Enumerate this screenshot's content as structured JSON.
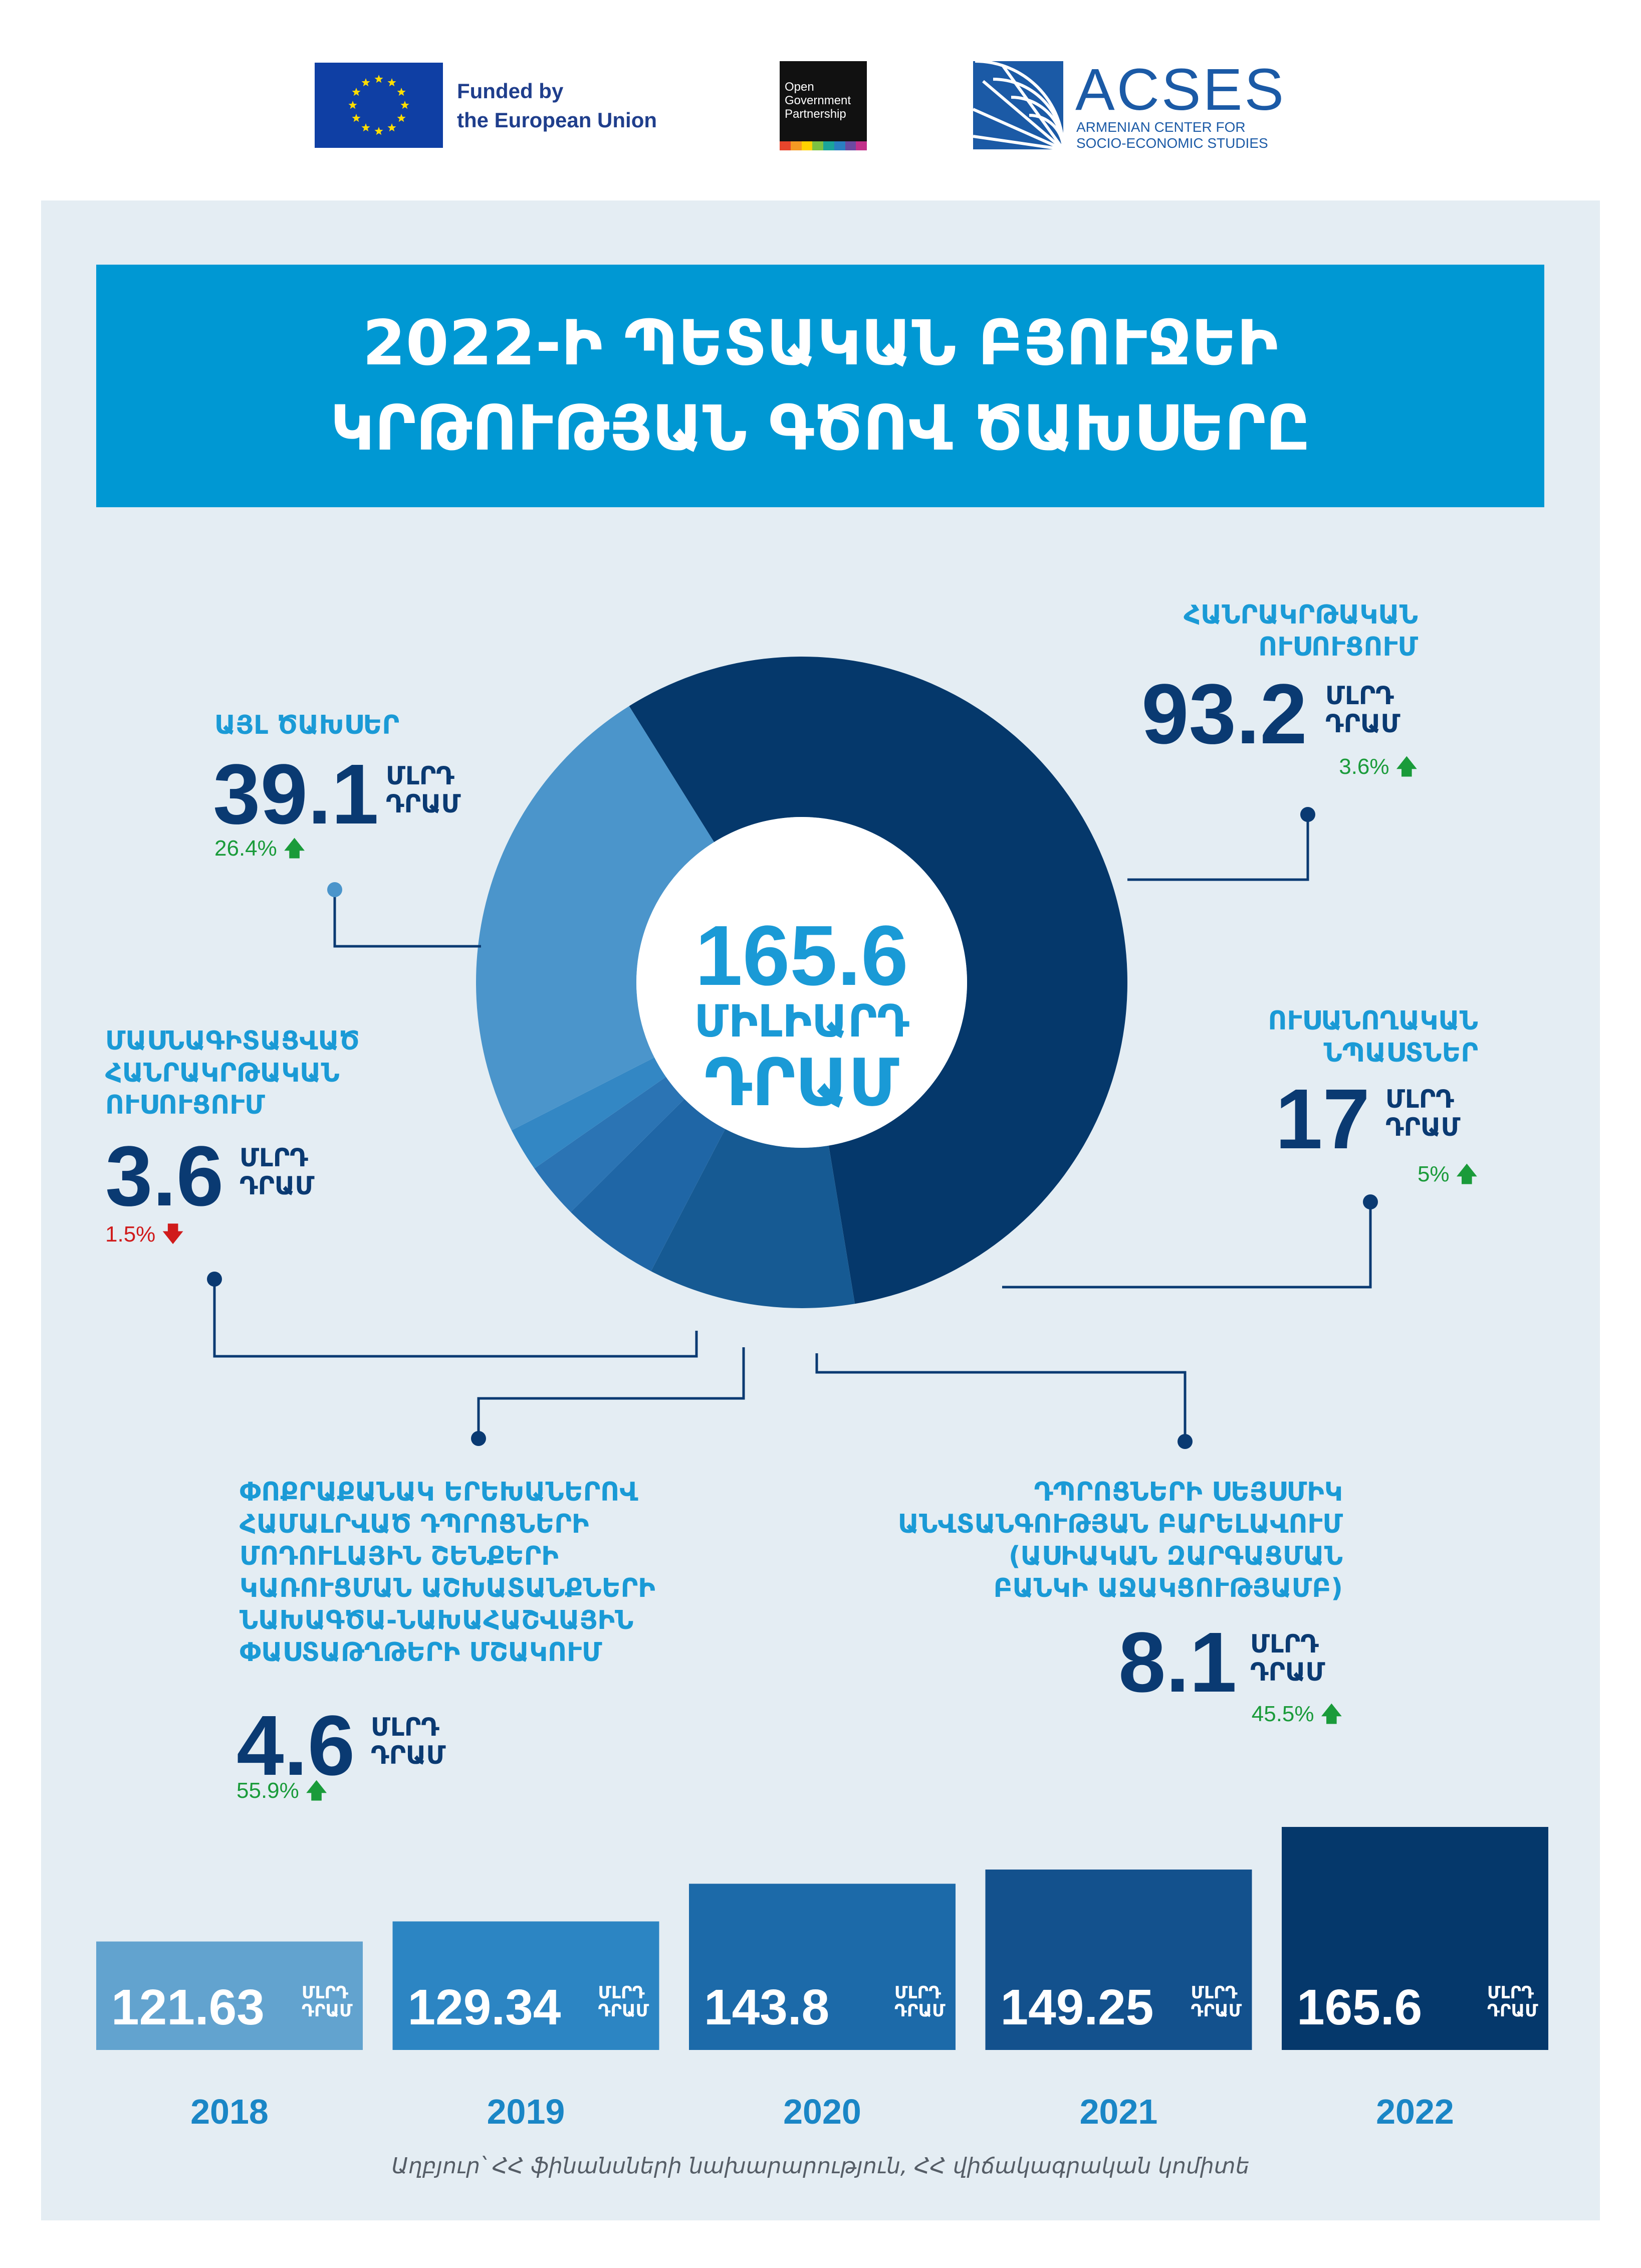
{
  "header": {
    "eu_text": "Funded by\nthe European Union",
    "ogp_text": "Open\nGovernment\nPartnership",
    "acses_name": "ACSES",
    "acses_sub": "ARMENIAN CENTER FOR\nSOCIO-ECONOMIC STUDIES"
  },
  "title": "2022-Ի ՊԵՏԱԿԱՆ ԲՅՈՒՋԵԻ\nԿՐԹՈՒԹՅԱՆ ԳԾՈՎ ԾԱԽՍԵՐԸ",
  "colors": {
    "title_bg": "#0098d3",
    "accent": "#1a9ad6",
    "navy": "#0a3a72",
    "panel": "#e4edf3",
    "up": "#1a9b3a",
    "down": "#d01b1b"
  },
  "unit_label": "ՄԼՐԴ\nԴՐԱՄ",
  "chart_data": [
    {
      "type": "pie",
      "donut": true,
      "center_value": "165.6",
      "center_unit_1": "ՄԻԼԻԱՐԴ",
      "center_unit_2": "ԴՐԱՄ",
      "slices": [
        {
          "label": "ՀԱՆՐԱԿՐԹԱԿԱՆ\nՈՒՍՈՒՑՈՒՄ",
          "value": 93.2,
          "value_text": "93.2",
          "change": "3.6%",
          "direction": "up",
          "color": "#05386b"
        },
        {
          "label": "ՈՒՍԱՆՈՂԱԿԱՆ\nՆՊԱՍՏՆԵՐ",
          "value": 17,
          "value_text": "17",
          "change": "5%",
          "direction": "up",
          "color": "#165a93"
        },
        {
          "label": "ԴՊՐՈՑՆԵՐԻ ՍԵՅՍՄԻԿ\nԱՆՎՏԱՆԳՈՒԹՅԱՆ ԲԱՐԵԼԱՎՈՒՄ\n(ԱՍԻԱԿԱՆ ԶԱՐԳԱՑՄԱՆ\nԲԱՆԿԻ ԱՋԱԿՑՈՒԹՅԱՄԲ)",
          "value": 8.1,
          "value_text": "8.1",
          "change": "45.5%",
          "direction": "up",
          "color": "#1f66a6"
        },
        {
          "label": "ՓՈՔՐԱՔԱՆԱԿ ԵՐԵԽԱՆԵՐՈՎ\nՀԱՄԱԼՐՎԱԾ ԴՊՐՈՑՆԵՐԻ\nՄՈԴՈՒԼԱՅԻՆ ՇԵՆՔԵՐԻ\nԿԱՌՈՒՑՄԱՆ ԱՇԽԱՏԱՆՔՆԵՐԻ\nՆԱԽԱԳԾԱ-ՆԱԽԱՀԱՇՎԱՅԻՆ\nՓԱՍՏԱԹՂԹԵՐԻ ՄՇԱԿՈՒՄ",
          "value": 4.6,
          "value_text": "4.6",
          "change": "55.9%",
          "direction": "up",
          "color": "#2b74b4"
        },
        {
          "label": "ՄԱՍՆԱԳԻՏԱՑՎԱԾ\nՀԱՆՐԱԿՐԹԱԿԱՆ\nՈՒՍՈՒՑՈՒՄ",
          "value": 3.6,
          "value_text": "3.6",
          "change": "1.5%",
          "direction": "down",
          "color": "#3387c4"
        },
        {
          "label": "ԱՅԼ ԾԱԽՍԵՐ",
          "value": 39.1,
          "value_text": "39.1",
          "change": "26.4%",
          "direction": "up",
          "color": "#4b95cb"
        }
      ]
    },
    {
      "type": "bar",
      "categories": [
        "2018",
        "2019",
        "2020",
        "2021",
        "2022"
      ],
      "values": [
        121.63,
        129.34,
        143.8,
        149.25,
        165.6
      ],
      "value_labels": [
        "121.63",
        "129.34",
        "143.8",
        "149.25",
        "165.6"
      ],
      "colors": [
        "#62a3cf",
        "#2c85c3",
        "#1c6aa9",
        "#13518d",
        "#05386b"
      ]
    }
  ],
  "source": "Աղբյուր՝ ՀՀ ֆինանսների նախարարություն, ՀՀ վիճակագրական կոմիտե"
}
